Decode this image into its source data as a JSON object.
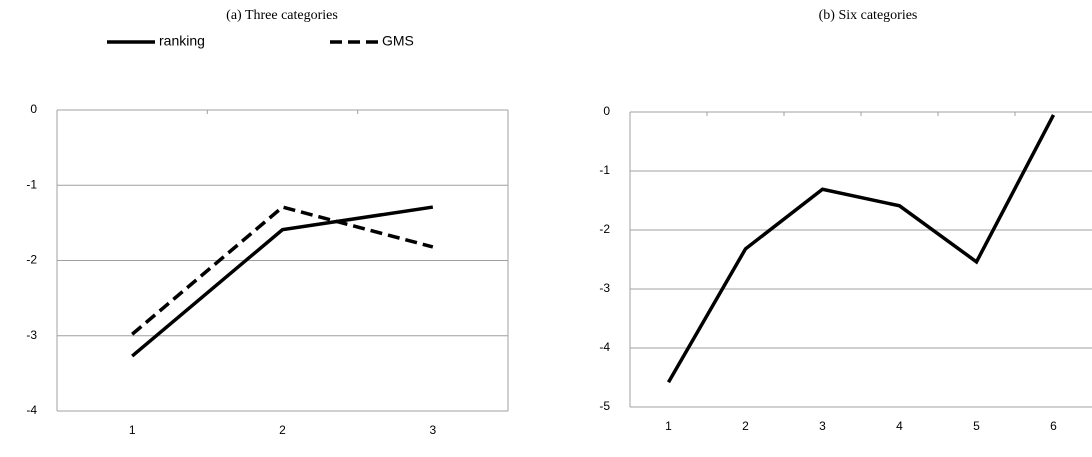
{
  "chart_data": [
    {
      "type": "line",
      "title": "(a) Three categories",
      "categories": [
        "1",
        "2",
        "3"
      ],
      "series": [
        {
          "name": "ranking",
          "color": "#000000",
          "line_style": "solid",
          "values": [
            -3.27,
            -1.59,
            -1.29
          ]
        },
        {
          "name": "GMS",
          "color": "#000000",
          "line_style": "dashed",
          "values": [
            -2.98,
            -1.29,
            -1.82
          ]
        }
      ],
      "ylim": [
        -4,
        0
      ],
      "yticks": [
        -4,
        -3,
        -2,
        -1,
        0
      ],
      "grid": true,
      "legend": "top"
    },
    {
      "type": "line",
      "title": "(b) Six categories",
      "categories": [
        "1",
        "2",
        "3",
        "4",
        "5",
        "6"
      ],
      "series": [
        {
          "color": "#000000",
          "line_style": "solid",
          "values": [
            -4.58,
            -2.32,
            -1.31,
            -1.59,
            -2.54,
            -0.05
          ]
        }
      ],
      "ylim": [
        -5,
        0
      ],
      "yticks": [
        -5,
        -4,
        -3,
        -2,
        -1,
        0
      ],
      "grid": true
    }
  ]
}
